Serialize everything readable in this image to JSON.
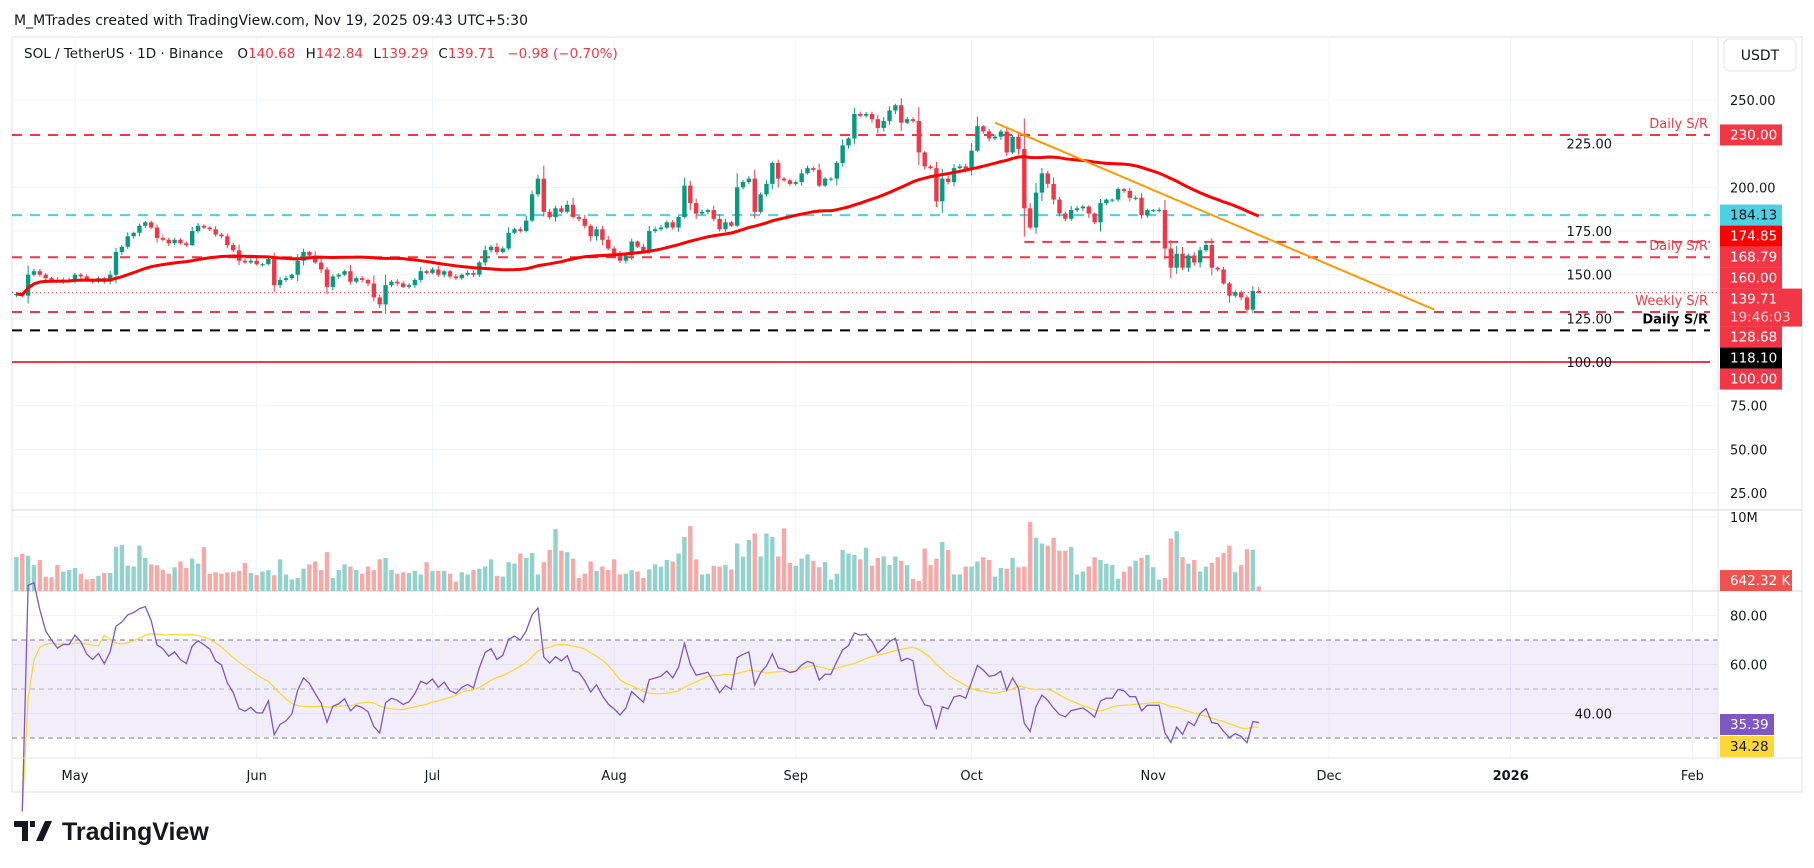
{
  "header": {
    "attribution": "M_MTrades created with TradingView.com, Nov 19, 2025 09:43 UTC+5:30"
  },
  "legend": {
    "symbol": "SOL / TetherUS · 1D · Binance",
    "o_label": "O",
    "o_value": "140.68",
    "h_label": "H",
    "h_value": "142.84",
    "l_label": "L",
    "l_value": "139.29",
    "c_label": "C",
    "c_value": "139.71",
    "change": "−0.98 (−0.70%)"
  },
  "currency_button": "USDT",
  "footer": {
    "logo_text": "TradingView"
  },
  "colors": {
    "up": "#089981",
    "down": "#f23645",
    "ma": "#ff0000",
    "cyan": "#4dd0e1",
    "trend": "#ff9800",
    "rsi": "#7e57c2",
    "rsi_ma": "#fdd835",
    "vol_up": "#92d2cc",
    "vol_down": "#f7a9a7"
  },
  "chart_data": {
    "type": "candlestick",
    "interval": "1D",
    "start_date": "2025-04-21",
    "price_axis": {
      "ticks": [
        "250.00",
        "225.00",
        "200.00",
        "175.00",
        "150.00",
        "125.00",
        "100.00",
        "75.00",
        "50.00",
        "25.00"
      ],
      "range": [
        15,
        260
      ]
    },
    "x_axis": {
      "labels": [
        {
          "text": "May",
          "date": "2025-05-01"
        },
        {
          "text": "Jun",
          "date": "2025-06-01"
        },
        {
          "text": "Jul",
          "date": "2025-07-01"
        },
        {
          "text": "Aug",
          "date": "2025-08-01"
        },
        {
          "text": "Sep",
          "date": "2025-09-01"
        },
        {
          "text": "Oct",
          "date": "2025-10-01"
        },
        {
          "text": "Nov",
          "date": "2025-11-01"
        },
        {
          "text": "Dec",
          "date": "2025-12-01"
        },
        {
          "text": "2026",
          "date": "2026-01-01"
        },
        {
          "text": "Feb",
          "date": "2026-02-01"
        }
      ]
    },
    "close": [
      139,
      138,
      150,
      152,
      150,
      148,
      147,
      146,
      147,
      147,
      150,
      149,
      147,
      146,
      148,
      146,
      150,
      163,
      166,
      172,
      174,
      178,
      180,
      177,
      171,
      170,
      168,
      170,
      168,
      167,
      175,
      178,
      177,
      176,
      173,
      172,
      167,
      164,
      158,
      157,
      158,
      156,
      156,
      159,
      144,
      147,
      148,
      150,
      158,
      163,
      161,
      157,
      153,
      143,
      149,
      150,
      152,
      146,
      148,
      147,
      145,
      137,
      133,
      144,
      146,
      145,
      143,
      144,
      147,
      152,
      151,
      153,
      150,
      152,
      149,
      148,
      150,
      151,
      150,
      157,
      164,
      166,
      163,
      165,
      174,
      176,
      175,
      181,
      196,
      205,
      186,
      183,
      188,
      186,
      190,
      183,
      182,
      178,
      172,
      176,
      170,
      165,
      162,
      158,
      161,
      169,
      166,
      163,
      175,
      176,
      177,
      180,
      177,
      183,
      201,
      191,
      185,
      186,
      187,
      182,
      176,
      180,
      178,
      200,
      203,
      205,
      186,
      196,
      202,
      214,
      205,
      204,
      202,
      203,
      208,
      211,
      210,
      201,
      205,
      205,
      214,
      224,
      228,
      242,
      241,
      242,
      239,
      234,
      238,
      244,
      247,
      237,
      239,
      238,
      220,
      212,
      211,
      192,
      205,
      203,
      211,
      212,
      210,
      221,
      235,
      232,
      228,
      229,
      232,
      220,
      229,
      222,
      188,
      177,
      197,
      208,
      202,
      193,
      185,
      182,
      187,
      188,
      189,
      185,
      180,
      191,
      193,
      193,
      199,
      198,
      194,
      194,
      184,
      187,
      187,
      187,
      165,
      154,
      162,
      154,
      161,
      157,
      164,
      167,
      154,
      153,
      145,
      138,
      140,
      137,
      130,
      140.68,
      139.71
    ],
    "last_candle": {
      "open": 140.68,
      "high": 142.84,
      "low": 139.29,
      "close": 139.71
    },
    "volume_millions": [
      4.7,
      5.2,
      4.9,
      3.6,
      4.3,
      2.0,
      1.9,
      3.6,
      2.7,
      2.9,
      3.2,
      2.4,
      1.6,
      1.7,
      2.1,
      2.5,
      2.5,
      6.1,
      6.4,
      3.5,
      3.4,
      6.3,
      4.6,
      3.7,
      3.6,
      2.9,
      2.4,
      3.3,
      4.1,
      3.2,
      4.5,
      3.8,
      6.1,
      2.4,
      2.6,
      2.4,
      2.6,
      2.6,
      2.8,
      3.9,
      2.5,
      2.2,
      2.7,
      2.9,
      2.2,
      4.4,
      2.3,
      1.6,
      1.8,
      3.1,
      3.7,
      4.1,
      2.9,
      5.4,
      1.8,
      2.9,
      3.7,
      3.4,
      2.9,
      2.4,
      3.4,
      2.9,
      4.4,
      4.6,
      2.9,
      2.4,
      2.6,
      2.5,
      2.8,
      2.3,
      4.0,
      2.8,
      2.8,
      2.8,
      2.4,
      1.3,
      2.6,
      2.3,
      2.9,
      3.1,
      3.4,
      4.4,
      2.1,
      2.0,
      4.0,
      3.8,
      5.2,
      4.6,
      5.3,
      2.3,
      4.0,
      5.7,
      8.6,
      5.6,
      5.4,
      4.5,
      1.8,
      2.4,
      4.1,
      2.8,
      3.4,
      2.9,
      4.4,
      2.3,
      2.4,
      2.9,
      2.7,
      1.8,
      3.0,
      3.7,
      3.4,
      4.3,
      4.1,
      5.2,
      7.5,
      9.0,
      4.4,
      2.3,
      2.4,
      3.5,
      3.4,
      3.6,
      3.0,
      6.6,
      4.8,
      7.1,
      8.0,
      4.8,
      8.0,
      7.5,
      4.8,
      8.7,
      3.9,
      3.5,
      4.5,
      5.1,
      4.2,
      3.3,
      4.0,
      1.6,
      2.4,
      5.7,
      5.2,
      5.0,
      4.4,
      6.0,
      3.5,
      4.6,
      4.8,
      3.6,
      4.8,
      4.2,
      3.6,
      1.7,
      1.4,
      5.9,
      3.6,
      4.5,
      6.8,
      5.7,
      2.3,
      2.3,
      3.4,
      3.4,
      4.1,
      4.7,
      4.3,
      2.0,
      3.2,
      3.1,
      4.6,
      3.3,
      3.4,
      9.6,
      7.4,
      6.6,
      6.3,
      7.4,
      5.6,
      5.6,
      6.1,
      2.3,
      2.7,
      3.4,
      4.7,
      4.3,
      3.8,
      3.6,
      1.7,
      2.7,
      3.4,
      4.2,
      4.6,
      5.0,
      3.3,
      1.6,
      1.8,
      7.3,
      8.3,
      4.7,
      3.8,
      4.3,
      2.7,
      3.4,
      3.9,
      4.7,
      5.3,
      6.3,
      2.6,
      3.6,
      5.8,
      5.7,
      0.642
    ],
    "volume_axis": {
      "tick": "10M",
      "last_label": "642.32 K"
    },
    "ma_last": "174.85",
    "rsi_axis": {
      "ticks": [
        "80.00",
        "60.00",
        "40.00"
      ],
      "upper": 70,
      "middle": 50,
      "lower": 30
    },
    "rsi_last": "35.39",
    "rsi_ma_last": "34.28",
    "levels": [
      {
        "price": 230.0,
        "color": "#f23645",
        "style": "dashed",
        "label": "Daily S/R",
        "label_color": "#f23645",
        "axis_text": "230.00",
        "axis_bg": "#f23645",
        "axis_fg": "#ffffff"
      },
      {
        "price": 184.13,
        "color": "#4dd0e1",
        "style": "dashed",
        "label": "",
        "axis_text": "184.13",
        "axis_bg": "#4dd0e1",
        "axis_fg": "#131722"
      },
      {
        "price": 168.79,
        "color": "#f23645",
        "style": "dashed",
        "start_date": "2025-10-10",
        "label": "",
        "axis_text": "168.79",
        "axis_bg": "#f23645",
        "axis_fg": "#ffffff"
      },
      {
        "price": 160.0,
        "color": "#f23645",
        "style": "dashed",
        "label": "Daily S/R",
        "label_color": "#f23645",
        "axis_text": "160.00",
        "axis_bg": "#f23645",
        "axis_fg": "#ffffff"
      },
      {
        "price": 128.68,
        "color": "#f23645",
        "style": "dashed",
        "label": "Weekly S/R",
        "label_color": "#f23645",
        "axis_text": "128.68",
        "axis_bg": "#f23645",
        "axis_fg": "#ffffff"
      },
      {
        "price": 118.1,
        "color": "#000000",
        "style": "dashed",
        "label": "Daily S/R",
        "label_color": "#000000",
        "axis_text": "118.10",
        "axis_bg": "#000000",
        "axis_fg": "#ffffff"
      },
      {
        "price": 100.0,
        "color": "#f23645",
        "style": "solid",
        "label": "",
        "axis_text": "100.00",
        "axis_bg": "#f23645",
        "axis_fg": "#ffffff"
      }
    ],
    "ma_label": {
      "axis_text": "174.85",
      "axis_bg": "#ff0000",
      "price": 174.85
    },
    "current_price": {
      "axis_text": "139.71",
      "countdown": "19:46:03",
      "price": 139.71
    },
    "trendline": {
      "start": {
        "date": "2025-10-05",
        "price": 237
      },
      "end": {
        "date": "2025-12-19",
        "price": 130
      }
    }
  }
}
